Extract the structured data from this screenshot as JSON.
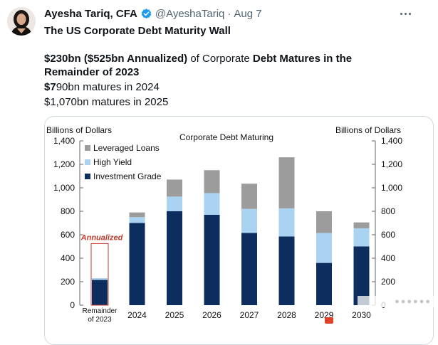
{
  "tweet": {
    "display_name": "Ayesha Tariq, CFA",
    "handle": "@AyeshaTariq",
    "separator": "·",
    "date": "Aug 7",
    "title": "The US Corporate Debt Maturity Wall",
    "line1_bold_a": "$230bn ($525bn Annualized)",
    "line1_normal_a": " of ",
    "line1_normal_b": "Corporate ",
    "line1_bold_b": "Debt Matures in the",
    "line2_bold": "Remainder of 2023",
    "line3_bold": "$7",
    "line3_normal": "90bn matures in 2024",
    "line4_normal": "$1,070bn matures in 2025",
    "verified_icon": "verified-badge-icon",
    "more_icon": "more-options-icon",
    "brand_color": "#1d9bf0"
  },
  "chart_data": {
    "type": "bar",
    "stacked": true,
    "title": "Corporate Debt Maturing",
    "ylabel_left": "Billions of Dollars",
    "ylabel_right": "Billions of Dollars",
    "ylim": [
      0,
      1400
    ],
    "yticks": [
      "0",
      "200",
      "400",
      "600",
      "800",
      "1,000",
      "1,200",
      "1,400"
    ],
    "ytick_values": [
      0,
      200,
      400,
      600,
      800,
      1000,
      1200,
      1400
    ],
    "categories": [
      "Remainder of 2023",
      "2024",
      "2025",
      "2026",
      "2027",
      "2028",
      "2029",
      "2030"
    ],
    "category_labels": [
      [
        "Remainder",
        "of 2023"
      ],
      [
        "2024"
      ],
      [
        "2025"
      ],
      [
        "2026"
      ],
      [
        "2027"
      ],
      [
        "2028"
      ],
      [
        "2029"
      ],
      [
        "2030"
      ]
    ],
    "series": [
      {
        "name": "Investment Grade",
        "color": "#0d2d5e",
        "values": [
          215,
          700,
          800,
          770,
          615,
          585,
          360,
          500
        ]
      },
      {
        "name": "High Yield",
        "color": "#a9d3f0",
        "values": [
          15,
          50,
          125,
          185,
          205,
          240,
          255,
          155
        ]
      },
      {
        "name": "Leveraged Loans",
        "color": "#9c9c9c",
        "values": [
          0,
          40,
          145,
          195,
          215,
          435,
          185,
          50
        ]
      }
    ],
    "legend_order": [
      "Leveraged Loans",
      "High Yield",
      "Investment Grade"
    ],
    "legend_position": "top-left",
    "annotation": {
      "label": "Annualized",
      "category": "Remainder of 2023",
      "value": 525,
      "color": "#c0392b"
    },
    "grid": false
  }
}
